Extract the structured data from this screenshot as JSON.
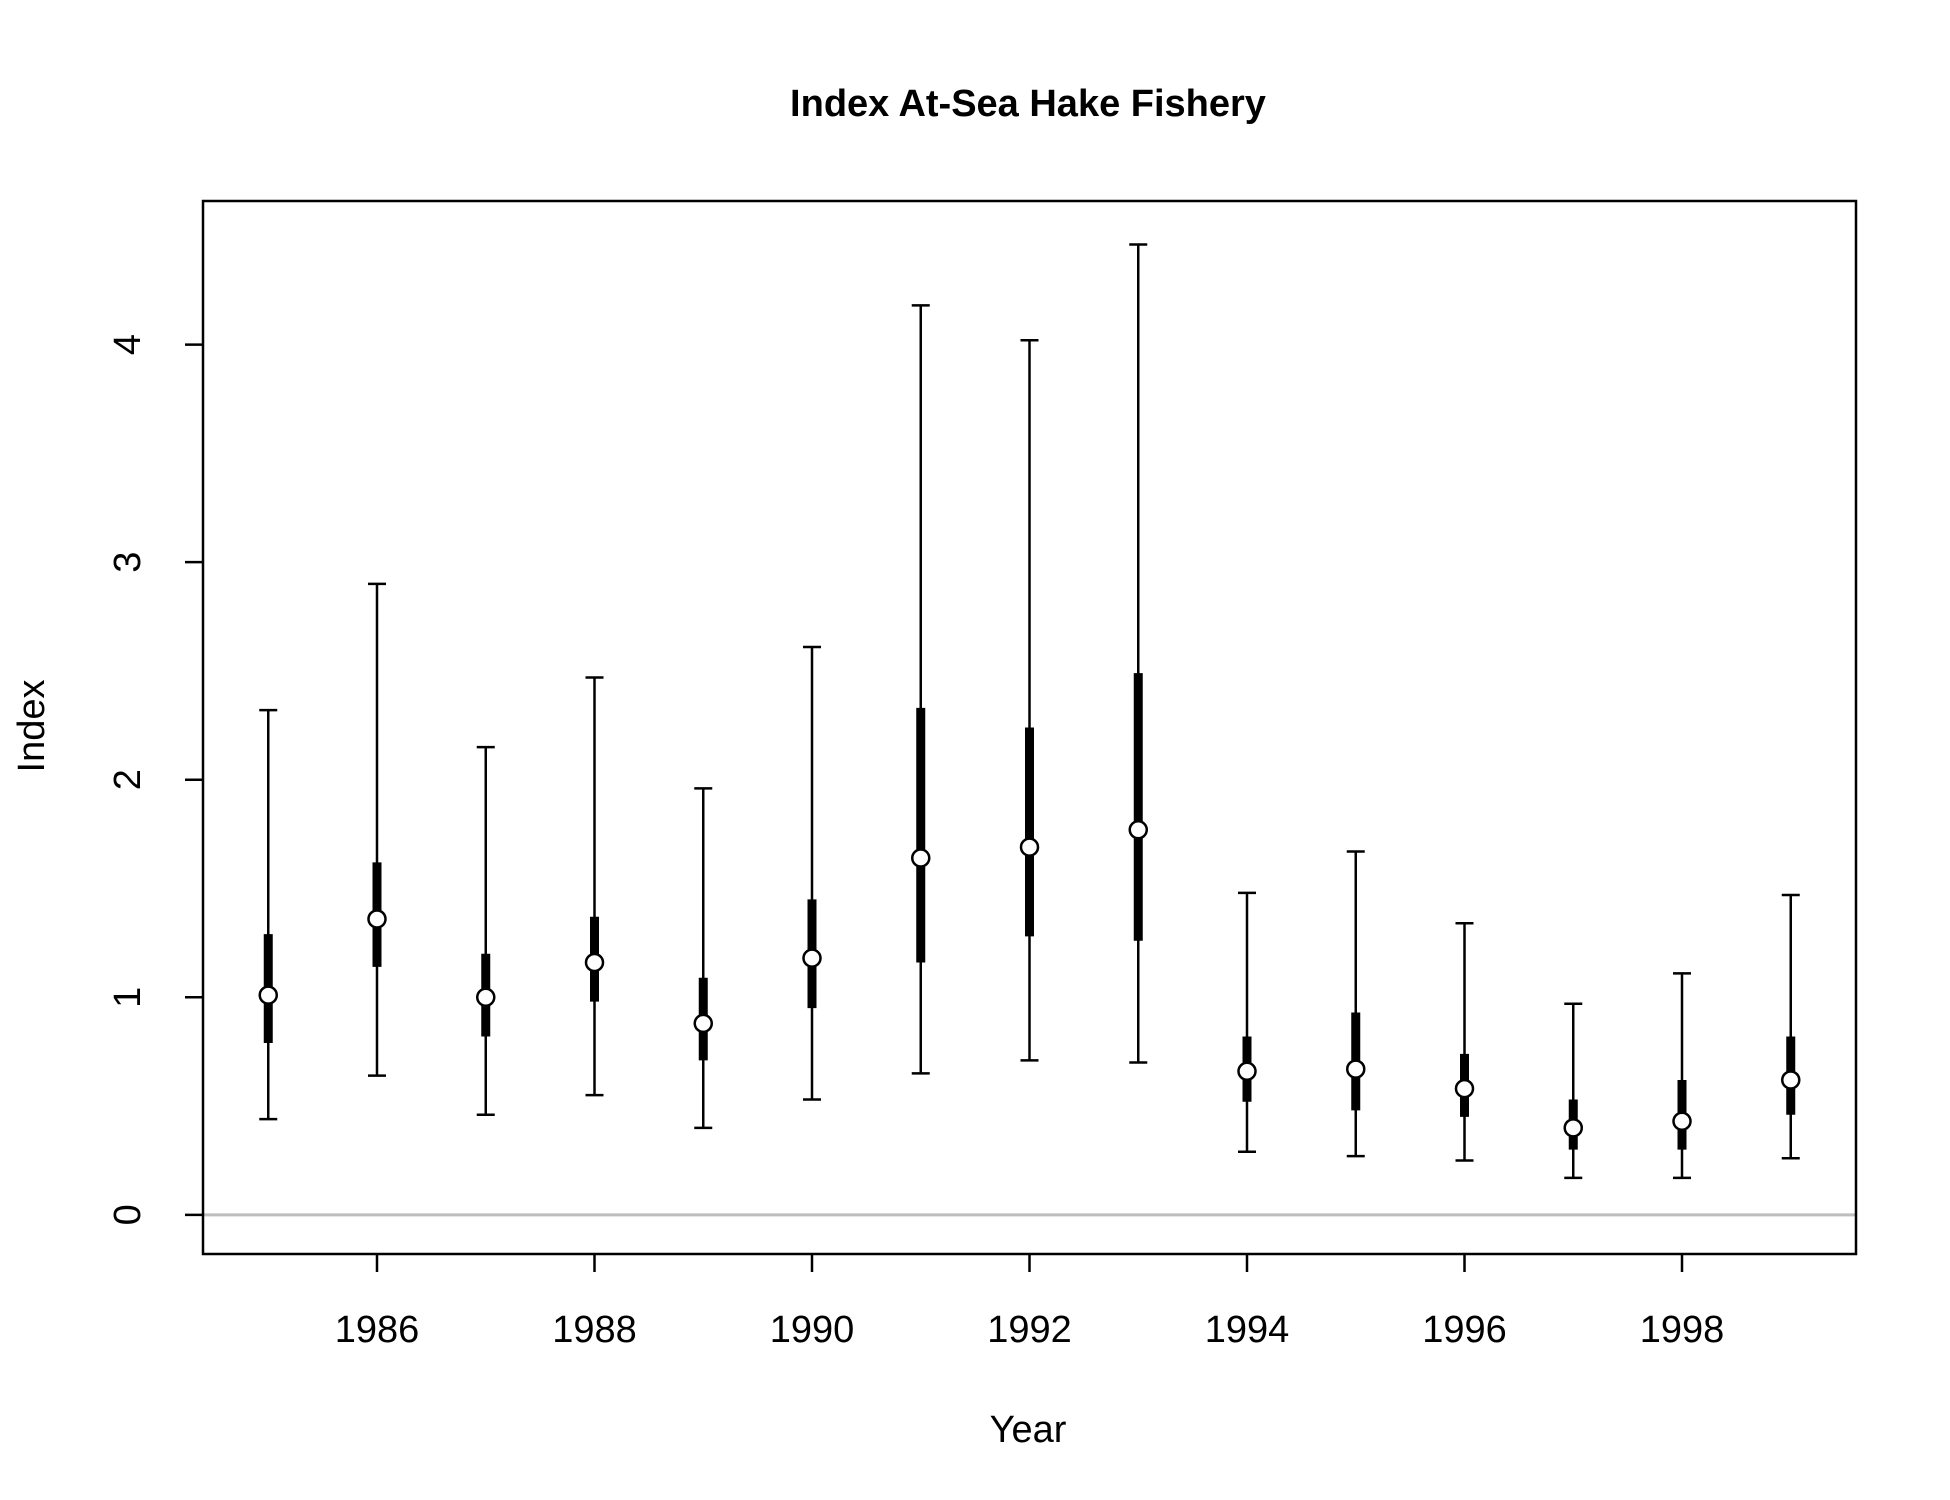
{
  "chart_data": {
    "type": "errorbar",
    "title": "Index At-Sea Hake Fishery",
    "xlabel": "Year",
    "ylabel": "Index",
    "x": [
      1985,
      1986,
      1987,
      1988,
      1989,
      1990,
      1991,
      1992,
      1993,
      1994,
      1995,
      1996,
      1997,
      1998,
      1999
    ],
    "series": [
      {
        "values": [
          1.01,
          1.36,
          1.0,
          1.16,
          0.88,
          1.18,
          1.64,
          1.69,
          1.77,
          0.66,
          0.67,
          0.58,
          0.4,
          0.43,
          0.62
        ],
        "inner_lower": [
          0.79,
          1.14,
          0.82,
          0.98,
          0.71,
          0.95,
          1.16,
          1.28,
          1.26,
          0.52,
          0.48,
          0.45,
          0.3,
          0.3,
          0.46
        ],
        "inner_upper": [
          1.29,
          1.62,
          1.2,
          1.37,
          1.09,
          1.45,
          2.33,
          2.24,
          2.49,
          0.82,
          0.93,
          0.74,
          0.53,
          0.62,
          0.82
        ],
        "lower": [
          0.44,
          0.64,
          0.46,
          0.55,
          0.4,
          0.53,
          0.65,
          0.71,
          0.7,
          0.29,
          0.27,
          0.25,
          0.17,
          0.17,
          0.26
        ],
        "upper": [
          2.32,
          2.9,
          2.15,
          2.47,
          1.96,
          2.61,
          4.18,
          4.02,
          4.46,
          1.48,
          1.67,
          1.34,
          0.97,
          1.11,
          1.47
        ]
      }
    ],
    "xlim": [
      1984.4,
      1999.6
    ],
    "ylim": [
      -0.18,
      4.66
    ],
    "xticks": [
      1986,
      1988,
      1990,
      1992,
      1994,
      1996,
      1998
    ],
    "yticks": [
      0,
      1,
      2,
      3,
      4
    ],
    "xtick_labels": [
      "1986",
      "1988",
      "1990",
      "1992",
      "1994",
      "1996",
      "1998"
    ],
    "ytick_labels": [
      "0",
      "1",
      "2",
      "3",
      "4"
    ],
    "reference_line": {
      "y": 0,
      "color": "#bebebe"
    },
    "grid": false,
    "legend": "none",
    "colors": {
      "line": "#000000",
      "point_fill": "#ffffff"
    }
  }
}
